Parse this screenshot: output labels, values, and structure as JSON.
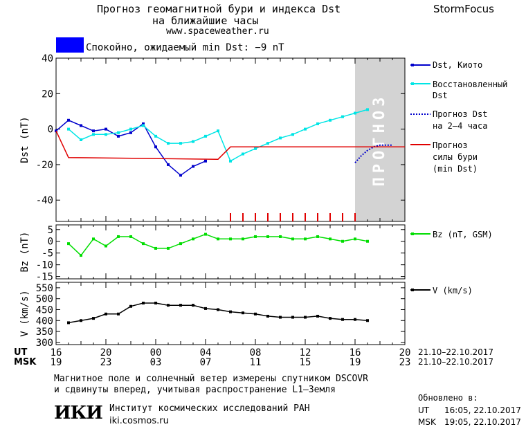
{
  "header": {
    "title_line1": "Прогноз геомагнитной бури и индекса Dst",
    "title_line2": "на ближайшие часы",
    "url": "www.spaceweather.ru",
    "brand": "StormFocus"
  },
  "status": {
    "text": "Спокойно, ожидаемый min Dst: −9 nT",
    "color": "#0000ff"
  },
  "chart_data": [
    {
      "type": "line",
      "id": "dst",
      "ylabel": "Dst (nT)",
      "ylim": [
        -52,
        40
      ],
      "yticks": [
        40,
        20,
        0,
        -20,
        -40
      ],
      "x_hours_range": [
        16,
        44
      ],
      "forecast_region_label": "ПРОГНОЗ",
      "forecast_region_hours": [
        40,
        44
      ],
      "series": [
        {
          "name": "Dst, Киото",
          "color": "#0000cc",
          "x": [
            16,
            17,
            18,
            19,
            20,
            21,
            22,
            23,
            24,
            25,
            26,
            27,
            28
          ],
          "y": [
            -1,
            5,
            2,
            -1,
            0,
            -4,
            -2,
            3,
            -10,
            -20,
            -26,
            -21,
            -18
          ]
        },
        {
          "name": "Восстановленный Dst",
          "color": "#00e5e5",
          "x": [
            17,
            18,
            19,
            20,
            21,
            22,
            23,
            24,
            25,
            26,
            27,
            28,
            29,
            30,
            31,
            32,
            33,
            34,
            35,
            36,
            37,
            38,
            39,
            40,
            41
          ],
          "y": [
            0,
            -6,
            -3,
            -3,
            -2,
            0,
            2,
            -4,
            -8,
            -8,
            -7,
            -4,
            -1,
            -18,
            -14,
            -11,
            -8,
            -5,
            -3,
            0,
            3,
            5,
            7,
            9,
            11
          ]
        },
        {
          "name": "Прогноз Dst на 2–4 часа",
          "color": "#0000cc",
          "dashed": true,
          "x": [
            40,
            40.5,
            41,
            41.5,
            42,
            43
          ],
          "y": [
            -19,
            -15,
            -12,
            -10,
            -9,
            -9
          ]
        },
        {
          "name": "Прогноз силы бури (min Dst)",
          "color": "#e00000",
          "x": [
            16,
            17,
            29,
            30,
            44
          ],
          "y": [
            -1,
            -16,
            -17,
            -10,
            -10
          ]
        }
      ],
      "forecast_ticks_hours": [
        30,
        31,
        32,
        33,
        34,
        35,
        36,
        37,
        38,
        39,
        40
      ]
    },
    {
      "type": "line",
      "id": "bz",
      "ylabel": "Bz (nT)",
      "ylim": [
        -16,
        7
      ],
      "yticks": [
        5,
        0,
        -5,
        -10,
        -15
      ],
      "series": [
        {
          "name": "Bz (nT, GSM)",
          "color": "#00dd00",
          "x": [
            17,
            18,
            19,
            20,
            21,
            22,
            23,
            24,
            25,
            26,
            27,
            28,
            29,
            30,
            31,
            32,
            33,
            34,
            35,
            36,
            37,
            38,
            39,
            40,
            41
          ],
          "y": [
            -1,
            -6,
            1,
            -2,
            2,
            2,
            -1,
            -3,
            -3,
            -1,
            1,
            3,
            1,
            1,
            1,
            2,
            2,
            2,
            1,
            1,
            2,
            1,
            0,
            1,
            0
          ]
        }
      ]
    },
    {
      "type": "line",
      "id": "v",
      "ylabel": "V (km/s)",
      "ylim": [
        290,
        575
      ],
      "yticks": [
        550,
        500,
        450,
        400,
        350,
        300
      ],
      "series": [
        {
          "name": "V (km/s)",
          "color": "#000000",
          "x": [
            17,
            18,
            19,
            20,
            21,
            22,
            23,
            24,
            25,
            26,
            27,
            28,
            29,
            30,
            31,
            32,
            33,
            34,
            35,
            36,
            37,
            38,
            39,
            40,
            41
          ],
          "y": [
            390,
            400,
            410,
            430,
            430,
            465,
            480,
            480,
            470,
            470,
            470,
            455,
            450,
            440,
            435,
            430,
            420,
            415,
            415,
            415,
            420,
            410,
            405,
            405,
            400
          ]
        }
      ]
    }
  ],
  "legend": {
    "dst_kyoto": "Dst, Киото",
    "restored_1": "Восстановленный",
    "restored_2": "Dst",
    "forecast_1": "Прогноз Dst",
    "forecast_2": "на 2–4 часа",
    "storm_1": "Прогноз",
    "storm_2": "силы бури",
    "storm_3": "(min Dst)",
    "bz": "Bz (nT, GSM)",
    "v": "V (km/s)"
  },
  "axes": {
    "ut_label": "UT",
    "msk_label": "MSK",
    "ut_ticks": [
      "16",
      "20",
      "00",
      "04",
      "08",
      "12",
      "16",
      "20"
    ],
    "msk_ticks": [
      "19",
      "23",
      "03",
      "07",
      "11",
      "15",
      "19",
      "23"
    ],
    "ut_range": "21.10–22.10.2017",
    "msk_range": "21.10–22.10.2017"
  },
  "footer": {
    "note_line1": "Магнитное поле и солнечный ветер измерены спутником DSCOVR",
    "note_line2": "и сдвинуты вперед, учитывая распространение L1–Земля",
    "institute": "Институт космических исследований РАН",
    "institute_url": "iki.cosmos.ru",
    "logo_text": "ИКИ",
    "updated_label": "Обновлено в:",
    "updated_ut_label": "UT",
    "updated_ut": "16:05, 22.10.2017",
    "updated_msk_label": "MSK",
    "updated_msk": "19:05, 22.10.2017"
  }
}
